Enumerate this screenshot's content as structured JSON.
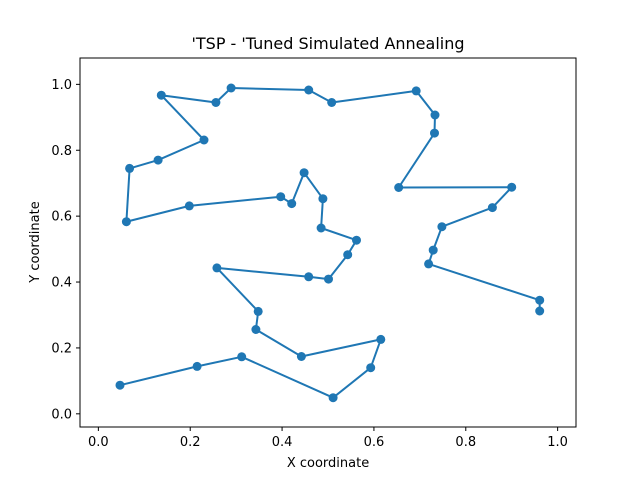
{
  "chart_data": {
    "type": "line",
    "title": "'TSP - 'Tuned Simulated Annealing",
    "xlabel": "X coordinate",
    "ylabel": "Y coordinate",
    "xlim": [
      -0.04,
      1.04
    ],
    "ylim": [
      -0.04,
      1.08
    ],
    "xticks": [
      "0.0",
      "0.2",
      "0.4",
      "0.6",
      "0.8",
      "1.0"
    ],
    "yticks": [
      "0.0",
      "0.2",
      "0.4",
      "0.6",
      "0.8",
      "1.0"
    ],
    "grid": false,
    "color": "#1f77b4",
    "markers": true,
    "series": [
      {
        "x": [
          0.047,
          0.215,
          0.312,
          0.511,
          0.593,
          0.615,
          0.442,
          0.343,
          0.348,
          0.258,
          0.458,
          0.501,
          0.543,
          0.562,
          0.485,
          0.489,
          0.448,
          0.421,
          0.397,
          0.198,
          0.061,
          0.068,
          0.13,
          0.23,
          0.137,
          0.256,
          0.289,
          0.458,
          0.508,
          0.692,
          0.733,
          0.732,
          0.654,
          0.9,
          0.858,
          0.748,
          0.729,
          0.719,
          0.961,
          0.961
        ],
        "y": [
          0.087,
          0.144,
          0.173,
          0.049,
          0.14,
          0.226,
          0.174,
          0.256,
          0.311,
          0.443,
          0.416,
          0.409,
          0.483,
          0.527,
          0.564,
          0.653,
          0.732,
          0.638,
          0.659,
          0.631,
          0.583,
          0.745,
          0.77,
          0.831,
          0.967,
          0.945,
          0.989,
          0.983,
          0.945,
          0.98,
          0.907,
          0.852,
          0.687,
          0.688,
          0.626,
          0.568,
          0.497,
          0.455,
          0.345,
          0.312
        ]
      }
    ]
  }
}
